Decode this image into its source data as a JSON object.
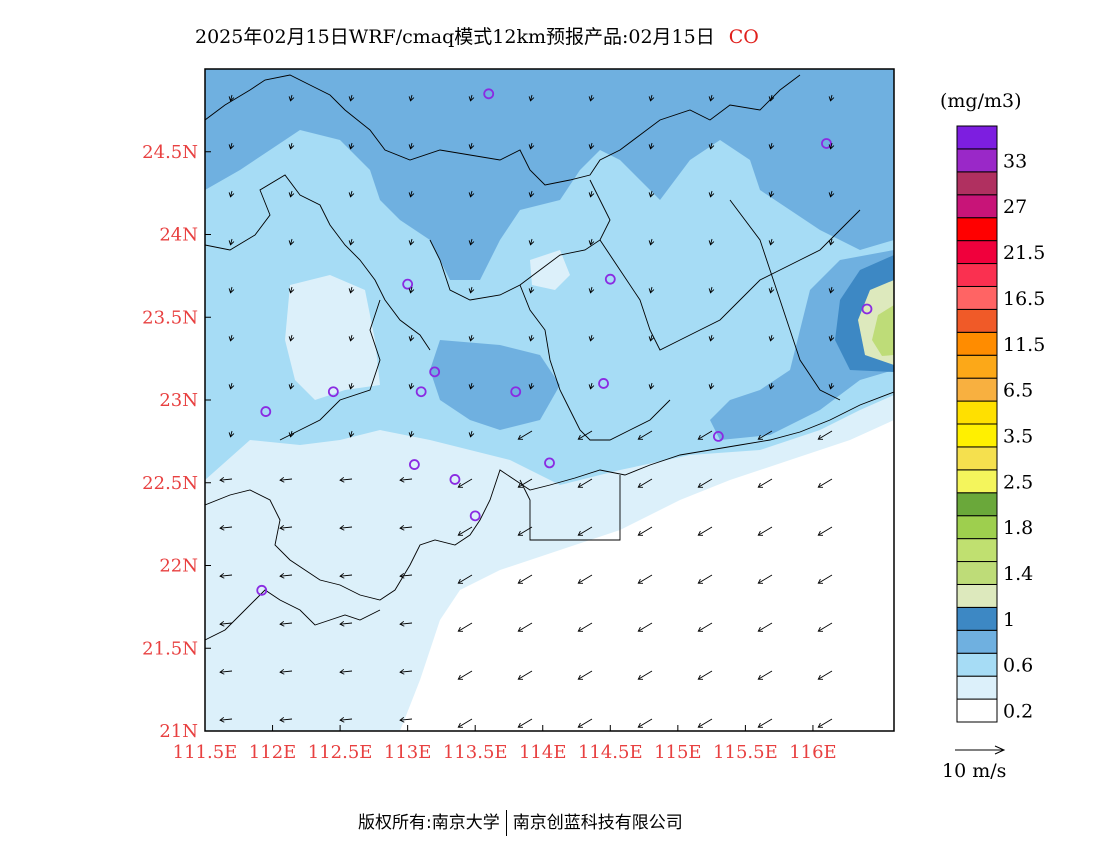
{
  "title": {
    "main": "2025年02月15日WRF/cmaq模式12km预报产品:02月15日",
    "variable": "CO",
    "variable_color": "#e0201c"
  },
  "chart_data": {
    "type": "heatmap",
    "variable": "CO",
    "lon_range": [
      111.5,
      116.6
    ],
    "lat_range": [
      21.0,
      25.0
    ],
    "x_ticks": [
      "111.5E",
      "112E",
      "112.5E",
      "113E",
      "113.5E",
      "114E",
      "114.5E",
      "115E",
      "115.5E",
      "116E"
    ],
    "x_tick_values": [
      111.5,
      112.0,
      112.5,
      113.0,
      113.5,
      114.0,
      114.5,
      115.0,
      115.5,
      116.0
    ],
    "y_ticks": [
      "21N",
      "21.5N",
      "22N",
      "22.5N",
      "23N",
      "23.5N",
      "24N",
      "24.5N"
    ],
    "y_tick_values": [
      21.0,
      21.5,
      22.0,
      22.5,
      23.0,
      23.5,
      24.0,
      24.5
    ],
    "tick_color": "#e84040",
    "colorbar": {
      "unit": "(mg/m3)",
      "levels": [
        {
          "color": "#ffffff",
          "label": "0.2"
        },
        {
          "color": "#dcf0fa",
          "label": ""
        },
        {
          "color": "#a6dcf5",
          "label": "0.6"
        },
        {
          "color": "#6fb0e0",
          "label": ""
        },
        {
          "color": "#3d88c4",
          "label": "1"
        },
        {
          "color": "#dde9bd",
          "label": ""
        },
        {
          "color": "#bedc78",
          "label": "1.4"
        },
        {
          "color": "#c0e070",
          "label": ""
        },
        {
          "color": "#9ecf4e",
          "label": "1.8"
        },
        {
          "color": "#6aa83a",
          "label": ""
        },
        {
          "color": "#f4f55c",
          "label": "2.5"
        },
        {
          "color": "#f5e04e",
          "label": ""
        },
        {
          "color": "#fff000",
          "label": "3.5"
        },
        {
          "color": "#ffe000",
          "label": ""
        },
        {
          "color": "#f8b040",
          "label": "6.5"
        },
        {
          "color": "#fca818",
          "label": ""
        },
        {
          "color": "#ff8c00",
          "label": "11.5"
        },
        {
          "color": "#f05a28",
          "label": ""
        },
        {
          "color": "#ff6464",
          "label": "16.5"
        },
        {
          "color": "#fa3050",
          "label": ""
        },
        {
          "color": "#f0003c",
          "label": "21.5"
        },
        {
          "color": "#ff0000",
          "label": ""
        },
        {
          "color": "#c81478",
          "label": "27"
        },
        {
          "color": "#b03060",
          "label": ""
        },
        {
          "color": "#9a28c8",
          "label": "33"
        },
        {
          "color": "#7d1ee0",
          "label": ""
        }
      ]
    },
    "wind_reference": "10 m/s",
    "stations_lonlat": [
      [
        113.6,
        24.85
      ],
      [
        116.1,
        24.55
      ],
      [
        113.0,
        23.7
      ],
      [
        114.5,
        23.73
      ],
      [
        116.4,
        23.55
      ],
      [
        112.45,
        23.05
      ],
      [
        111.95,
        22.93
      ],
      [
        113.1,
        23.05
      ],
      [
        113.2,
        23.17
      ],
      [
        113.8,
        23.05
      ],
      [
        114.45,
        23.1
      ],
      [
        115.3,
        22.78
      ],
      [
        113.05,
        22.61
      ],
      [
        113.35,
        22.52
      ],
      [
        114.05,
        22.62
      ],
      [
        113.5,
        22.3
      ],
      [
        111.92,
        21.85
      ]
    ],
    "station_color": "#8a2be2"
  },
  "footer": {
    "left": "版权所有:南京大学",
    "right": "南京创蓝科技有限公司"
  }
}
